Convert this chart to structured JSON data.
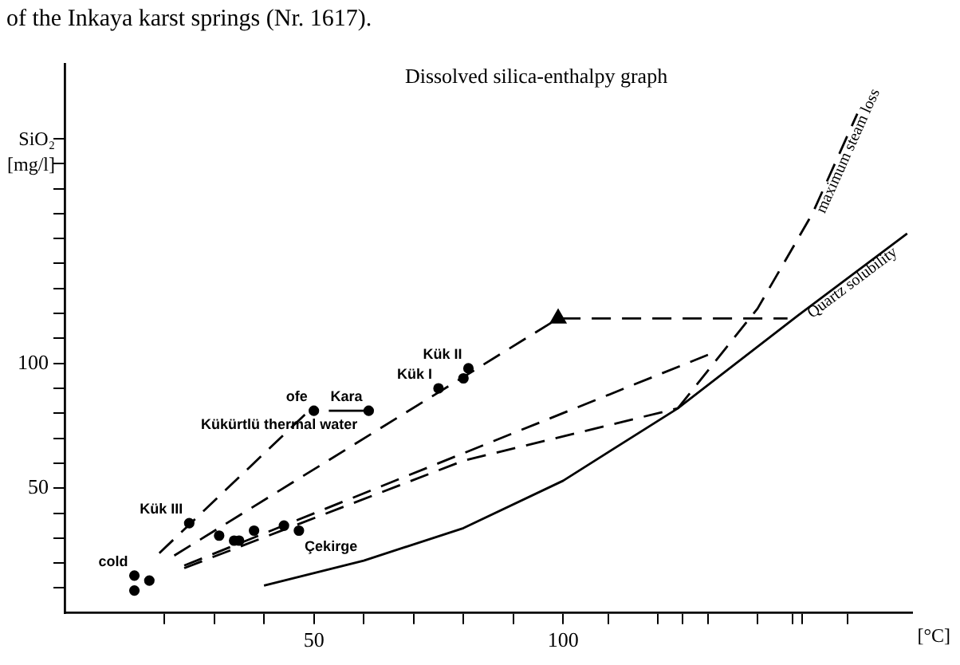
{
  "chart_data": {
    "type": "line",
    "title": "Dissolved silica-enthalpy graph",
    "xlabel": "[°C]",
    "ylabel": "SiO₂ [mg/l]",
    "xlim": [
      0,
      170
    ],
    "ylim": [
      0,
      220
    ],
    "xticks": [
      {
        "value": 20,
        "label": null
      },
      {
        "value": 30,
        "label": null
      },
      {
        "value": 40,
        "label": null
      },
      50,
      {
        "value": 60,
        "label": null
      },
      {
        "value": 70,
        "label": null
      },
      {
        "value": 80,
        "label": null
      },
      {
        "value": 90,
        "label": null
      },
      100,
      {
        "value": 109,
        "label": null
      },
      {
        "value": 119,
        "label": null
      },
      {
        "value": 124,
        "label": null
      },
      {
        "value": 129,
        "label": null
      },
      {
        "value": 139,
        "label": null
      },
      {
        "value": 146,
        "label": null
      },
      {
        "value": 148,
        "label": null
      },
      {
        "value": 157,
        "label": null
      }
    ],
    "yticks": [
      {
        "value": 10,
        "label": null
      },
      {
        "value": 20,
        "label": null
      },
      {
        "value": 30,
        "label": null
      },
      {
        "value": 40,
        "label": null
      },
      50,
      {
        "value": 60,
        "label": null
      },
      {
        "value": 70,
        "label": null
      },
      {
        "value": 80,
        "label": null
      },
      {
        "value": 90,
        "label": null
      },
      100,
      {
        "value": 110,
        "label": null
      },
      {
        "value": 120,
        "label": null
      },
      {
        "value": 130,
        "label": null
      },
      {
        "value": 140,
        "label": null
      },
      {
        "value": 150,
        "label": null
      },
      {
        "value": 160,
        "label": null
      },
      {
        "value": 170,
        "label": null
      },
      {
        "value": 180,
        "label": null
      },
      {
        "value": 190,
        "label": null
      }
    ],
    "grid": false,
    "legend": false,
    "series": [
      {
        "name": "Quartz solubility",
        "type": "line",
        "line_style": "solid",
        "marker": "none",
        "color": "#000000",
        "x": [
          40,
          60,
          80,
          100,
          123,
          147,
          169
        ],
        "values": [
          11,
          21,
          34,
          53,
          82,
          119,
          152
        ]
      },
      {
        "name": "maximum steam loss",
        "type": "line",
        "line_style": "dashed",
        "marker": "none",
        "color": "#000000",
        "x": [
          123,
          139,
          150,
          159
        ],
        "values": [
          82,
          122,
          160,
          200
        ]
      },
      {
        "type": "line",
        "line_style": "dashed",
        "marker": "none",
        "color": "#000000",
        "x": [
          19,
          49
        ],
        "values": [
          24,
          81
        ]
      },
      {
        "type": "line",
        "line_style": "dashed",
        "marker": "none",
        "color": "#000000",
        "x": [
          22,
          99,
          145
        ],
        "values": [
          23,
          118,
          118
        ]
      },
      {
        "type": "line",
        "line_style": "dashed",
        "marker": "none",
        "color": "#000000",
        "x": [
          24,
          131
        ],
        "values": [
          19,
          105
        ]
      },
      {
        "type": "line",
        "line_style": "dashed",
        "marker": "none",
        "color": "#000000",
        "x": [
          24,
          80,
          123
        ],
        "values": [
          18,
          61,
          82
        ]
      },
      {
        "type": "line",
        "line_style": "solid",
        "marker": "none",
        "color": "#000000",
        "x": [
          53,
          61
        ],
        "values": [
          81,
          81
        ]
      },
      {
        "type": "scatter",
        "marker": "circle",
        "color": "#000000",
        "x": [
          14,
          17,
          14,
          25,
          31,
          34,
          35,
          38,
          44,
          47,
          50,
          61,
          75,
          80,
          81
        ],
        "values": [
          15,
          13,
          9,
          36,
          31,
          29,
          29,
          33,
          35,
          33,
          81,
          81,
          90,
          94,
          98
        ]
      },
      {
        "type": "scatter",
        "marker": "triangle",
        "color": "#000000",
        "x": [
          99
        ],
        "values": [
          118
        ]
      }
    ],
    "annotations": [
      "of the Inkaya karst springs (Nr. 1617).",
      {
        "text": "cold",
        "x": 14,
        "y": 15
      },
      {
        "text": "Kük III",
        "x": 25,
        "y": 36
      },
      {
        "text": "ofe",
        "x": 50,
        "y": 81
      },
      {
        "text": "Kara",
        "x": 61,
        "y": 81
      },
      {
        "text": "Kük I",
        "x": 75,
        "y": 90
      },
      {
        "text": "Kük II",
        "x": 81,
        "y": 98
      },
      {
        "text": "Çekirge",
        "x": 60,
        "y": 21
      },
      {
        "text": "Kükürtlü thermal water",
        "x": 60,
        "y": 69.9
      }
    ]
  }
}
